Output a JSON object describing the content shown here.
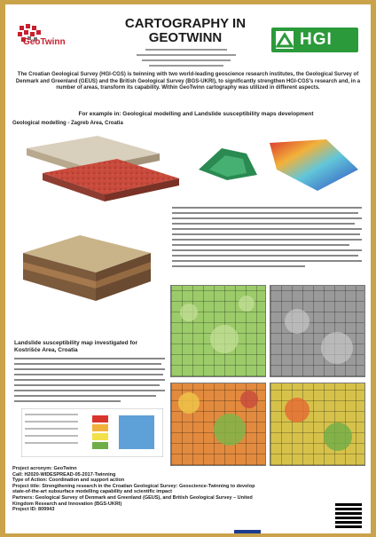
{
  "poster": {
    "logo_left": "GeoTwinn",
    "logo_right": "HGI",
    "title_line1": "CARTOGRAPHY IN",
    "title_line2": "GEOTWINN",
    "authors": [
      "",
      "",
      "",
      ""
    ],
    "intro": "The Croatian Geological Survey (HGI-CGS) is twinning with two world-leading geoscience research institutes, the Geological Survey of Denmark and Greenland (GEUS) and the British Geological Survey (BGS-UKRI), to significantly strengthen HGI-CGS's research and, in a number of areas, transform its capability. Within GeoTwinn cartography was utilized in different aspects.",
    "example_heading": "For example in: Geological modelling and Landslide susceptibility maps development",
    "geomod_heading": "Geological modelling - Zagreb Area, Croatia",
    "landslide_heading": "Landslide susceptibility map investigated for Kostrišće Area, Croatia",
    "footer_lines": [
      "Project acronym: GeoTwinn",
      "Call: H2020-WIDESPREAD-05-2017-Twinning",
      "Type of Action: Coordination and support action",
      "Project title: Strengthening research in the Croatian Geological Survey: Geoscience-Twinning to develop",
      "state-of-the-art subsurface modelling capability and scientific impact",
      "Partners: Geological Survey of Denmark and Greenland (GEUS), and British Geological Survey – United",
      "Kingdom Research and Innovation (BGS-UKRI)",
      "Project ID: 809943"
    ]
  }
}
